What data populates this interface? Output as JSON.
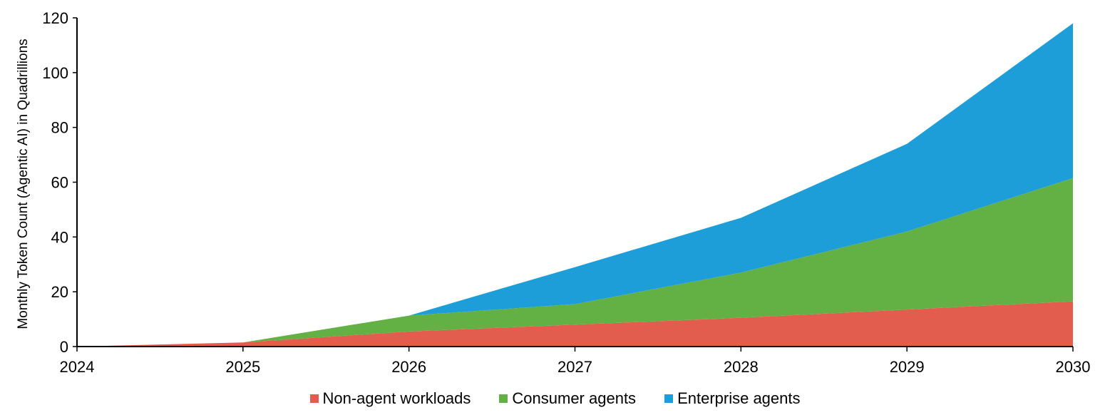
{
  "chart_data": {
    "type": "area",
    "stacked": true,
    "title": "",
    "xlabel": "",
    "ylabel": "Monthly Token Count (Agentic AI) in Quadrillions",
    "x": [
      "2024",
      "2025",
      "2026",
      "2027",
      "2028",
      "2029",
      "2030"
    ],
    "ylim": [
      0,
      120
    ],
    "yticks": [
      "0",
      "20",
      "40",
      "60",
      "80",
      "100",
      "120"
    ],
    "grid": false,
    "legend_position": "bottom",
    "series": [
      {
        "name": "Non-agent workloads",
        "color": "#e35d4f",
        "values": [
          0,
          1.5,
          5.5,
          8,
          10.5,
          13.5,
          16.5
        ]
      },
      {
        "name": "Consumer agents",
        "color": "#63b145",
        "values": [
          0,
          0,
          5.8,
          7.5,
          16.5,
          28.5,
          45
        ]
      },
      {
        "name": "Enterprise agents",
        "color": "#1e9ed8",
        "values": [
          0,
          0,
          0,
          13.5,
          20,
          32,
          56.5
        ]
      }
    ]
  }
}
